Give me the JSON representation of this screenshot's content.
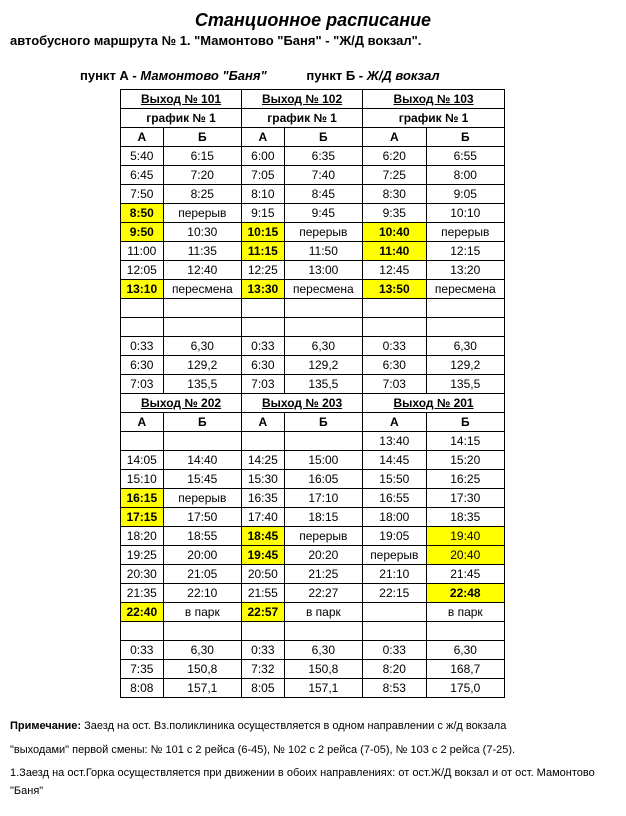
{
  "title": "Станционное расписание",
  "subtitle": "автобусного маршрута № 1. \"Мамонтово \"Баня\" - \"Ж/Д вокзал\".",
  "pointA_label": "пункт  А - ",
  "pointA_name": "Мамонтово \"Баня\"",
  "pointB_label": "пункт  Б - ",
  "pointB_name": "Ж/Д вокзал",
  "block1": {
    "headers": [
      "Выход № 101",
      "Выход № 102",
      "Выход № 103"
    ],
    "sub": [
      "график № 1",
      "график № 1",
      "график № 1"
    ],
    "ab": [
      "А",
      "Б",
      "А",
      "Б",
      "А",
      "Б"
    ],
    "rows": [
      [
        {
          "t": "5:40"
        },
        {
          "t": "6:15"
        },
        {
          "t": "6:00"
        },
        {
          "t": "6:35"
        },
        {
          "t": "6:20"
        },
        {
          "t": "6:55"
        }
      ],
      [
        {
          "t": "6:45"
        },
        {
          "t": "7:20"
        },
        {
          "t": "7:05"
        },
        {
          "t": "7:40"
        },
        {
          "t": "7:25"
        },
        {
          "t": "8:00"
        }
      ],
      [
        {
          "t": "7:50"
        },
        {
          "t": "8:25"
        },
        {
          "t": "8:10"
        },
        {
          "t": "8:45"
        },
        {
          "t": "8:30"
        },
        {
          "t": "9:05"
        }
      ],
      [
        {
          "t": "8:50",
          "h": 1
        },
        {
          "t": "перерыв"
        },
        {
          "t": "9:15"
        },
        {
          "t": "9:45"
        },
        {
          "t": "9:35"
        },
        {
          "t": "10:10"
        }
      ],
      [
        {
          "t": "9:50",
          "h": 1
        },
        {
          "t": "10:30"
        },
        {
          "t": "10:15",
          "h": 1
        },
        {
          "t": "перерыв"
        },
        {
          "t": "10:40",
          "h": 1
        },
        {
          "t": "перерыв"
        }
      ],
      [
        {
          "t": "11:00"
        },
        {
          "t": "11:35"
        },
        {
          "t": "11:15",
          "h": 1
        },
        {
          "t": "11:50"
        },
        {
          "t": "11:40",
          "h": 1
        },
        {
          "t": "12:15"
        }
      ],
      [
        {
          "t": "12:05"
        },
        {
          "t": "12:40"
        },
        {
          "t": "12:25"
        },
        {
          "t": "13:00"
        },
        {
          "t": "12:45"
        },
        {
          "t": "13:20"
        }
      ],
      [
        {
          "t": "13:10",
          "h": 1
        },
        {
          "t": "пересмена"
        },
        {
          "t": "13:30",
          "h": 1
        },
        {
          "t": "пересмена"
        },
        {
          "t": "13:50",
          "h": 1
        },
        {
          "t": "пересмена"
        }
      ]
    ],
    "gap": [
      [
        "",
        "",
        "",
        "",
        "",
        ""
      ],
      [
        "",
        "",
        "",
        "",
        "",
        ""
      ]
    ],
    "footer": [
      [
        "0:33",
        "6,30",
        "0:33",
        "6,30",
        "0:33",
        "6,30"
      ],
      [
        "6:30",
        "129,2",
        "6:30",
        "129,2",
        "6:30",
        "129,2"
      ],
      [
        "7:03",
        "135,5",
        "7:03",
        "135,5",
        "7:03",
        "135,5"
      ]
    ]
  },
  "block2": {
    "headers": [
      "Выход № 202",
      "Выход № 203",
      "Выход № 201"
    ],
    "ab": [
      "А",
      "Б",
      "А",
      "Б",
      "А",
      "Б"
    ],
    "rows": [
      [
        {
          "t": ""
        },
        {
          "t": ""
        },
        {
          "t": ""
        },
        {
          "t": ""
        },
        {
          "t": "13:40"
        },
        {
          "t": "14:15"
        }
      ],
      [
        {
          "t": "14:05"
        },
        {
          "t": "14:40"
        },
        {
          "t": "14:25"
        },
        {
          "t": "15:00"
        },
        {
          "t": "14:45"
        },
        {
          "t": "15:20"
        }
      ],
      [
        {
          "t": "15:10"
        },
        {
          "t": "15:45"
        },
        {
          "t": "15:30"
        },
        {
          "t": "16:05"
        },
        {
          "t": "15:50"
        },
        {
          "t": "16:25"
        }
      ],
      [
        {
          "t": "16:15",
          "h": 1
        },
        {
          "t": "перерыв"
        },
        {
          "t": "16:35"
        },
        {
          "t": "17:10"
        },
        {
          "t": "16:55"
        },
        {
          "t": "17:30"
        }
      ],
      [
        {
          "t": "17:15",
          "h": 1
        },
        {
          "t": "17:50"
        },
        {
          "t": "17:40"
        },
        {
          "t": "18:15"
        },
        {
          "t": "18:00"
        },
        {
          "t": "18:35"
        }
      ],
      [
        {
          "t": "18:20"
        },
        {
          "t": "18:55"
        },
        {
          "t": "18:45",
          "h": 1
        },
        {
          "t": "перерыв"
        },
        {
          "t": "19:05"
        },
        {
          "t": "19:40",
          "h": 2
        }
      ],
      [
        {
          "t": "19:25"
        },
        {
          "t": "20:00"
        },
        {
          "t": "19:45",
          "h": 1
        },
        {
          "t": "20:20"
        },
        {
          "t": "перерыв"
        },
        {
          "t": "20:40",
          "h": 2
        }
      ],
      [
        {
          "t": "20:30"
        },
        {
          "t": "21:05"
        },
        {
          "t": "20:50"
        },
        {
          "t": "21:25"
        },
        {
          "t": "21:10"
        },
        {
          "t": "21:45"
        }
      ],
      [
        {
          "t": "21:35"
        },
        {
          "t": "22:10"
        },
        {
          "t": "21:55"
        },
        {
          "t": "22:27"
        },
        {
          "t": "22:15"
        },
        {
          "t": "22:48",
          "h": 1
        }
      ],
      [
        {
          "t": "22:40",
          "h": 1
        },
        {
          "t": "в парк"
        },
        {
          "t": "22:57",
          "h": 1
        },
        {
          "t": "в парк"
        },
        {
          "t": ""
        },
        {
          "t": "в парк"
        }
      ]
    ],
    "gap": [
      [
        "",
        "",
        "",
        "",
        "",
        ""
      ]
    ],
    "footer": [
      [
        "0:33",
        "6,30",
        "0:33",
        "6,30",
        "0:33",
        "6,30"
      ],
      [
        "7:35",
        "150,8",
        "7:32",
        "150,8",
        "8:20",
        "168,7"
      ],
      [
        "8:08",
        "157,1",
        "8:05",
        "157,1",
        "8:53",
        "175,0"
      ]
    ]
  },
  "notes": {
    "l1a": "Примечание: ",
    "l1b": "Заезд на ост. Вз.поликлиника осуществляется в одном  направлении с ж/д вокзала",
    "l2": "\"выходами\" первой смены: № 101 с 2 рейса (6-45),  № 102 с 2 рейса (7-05), № 103 с 2 рейса (7-25).",
    "l3": "1.Заезд на ост.Горка осуществляется при движении в обоих направлениях: от ост.Ж/Д вокзал и от ост. Мамонтово \"Баня\""
  }
}
